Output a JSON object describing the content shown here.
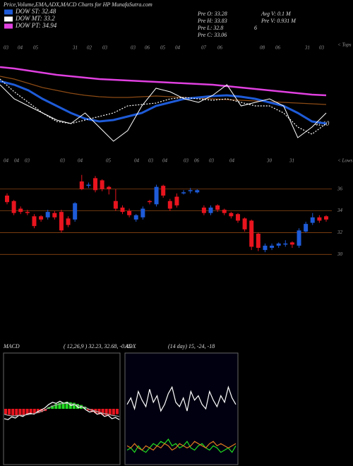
{
  "header": {
    "title": "Price,Volume,EMA,ADX,MACD Charts for HP MunafaSutra.com",
    "legend": [
      {
        "text": "DOW ST: 32.48",
        "color": "#1e5bd8"
      },
      {
        "text": "DOW MT: 33.2",
        "color": "#ffffff"
      },
      {
        "text": "DOW PT: 34.94",
        "color": "#e040e0"
      }
    ],
    "info": [
      "Pre O: 33.28",
      "Avg V: 0.1 M",
      "Pre H: 33.83",
      "Pre V: 0.931 M",
      "Pre L: 32.8",
      "6",
      "Pre C: 33.06"
    ],
    "tops_label": "< Tops",
    "lows_label": "< Lows",
    "top_dates": [
      "03",
      "04",
      "05",
      "31",
      "02",
      "03",
      "03",
      "06",
      "05",
      "04",
      "07",
      "06",
      "08",
      "06",
      "31",
      "03"
    ],
    "low_dates": [
      "04",
      "04",
      "03",
      "03",
      "04",
      "05",
      "04",
      "03",
      "04",
      "03",
      "06",
      "03",
      "04",
      "30",
      "31"
    ]
  },
  "chart_data": [
    {
      "type": "line",
      "annotation": "41.10",
      "ylim": [
        0,
        150
      ],
      "series": [
        {
          "name": "DOW PT",
          "color": "#e040e0",
          "width": 2.5,
          "values": [
            120,
            118,
            115,
            112,
            109,
            107,
            105,
            103,
            102,
            101,
            100,
            99,
            98,
            97,
            96,
            95,
            93,
            91,
            89,
            87,
            85,
            83,
            81,
            80
          ]
        },
        {
          "name": "DOW LT",
          "color": "#8b4a14",
          "width": 1.2,
          "values": [
            107,
            103,
            97,
            91,
            87,
            83,
            80,
            78,
            77,
            77,
            78,
            79,
            78,
            77,
            76,
            75,
            74,
            73,
            72,
            71,
            70,
            69,
            68,
            67
          ]
        },
        {
          "name": "DOW ST",
          "color": "#1e5bd8",
          "width": 3,
          "values": [
            100,
            95,
            87,
            75,
            65,
            55,
            47,
            43,
            45,
            50,
            55,
            65,
            70,
            75,
            77,
            79,
            80,
            78,
            75,
            70,
            65,
            55,
            43,
            40
          ]
        },
        {
          "name": "DOW MT",
          "color": "#ffffff",
          "width": 1.2,
          "dash": true,
          "values": [
            103,
            85,
            70,
            55,
            43,
            40,
            45,
            50,
            55,
            65,
            67,
            69,
            75,
            77,
            75,
            73,
            75,
            70,
            65,
            65,
            55,
            35,
            25,
            40
          ]
        },
        {
          "name": "Price",
          "color": "#ffffff",
          "width": 1,
          "values": [
            95,
            75,
            65,
            55,
            45,
            40,
            55,
            35,
            15,
            30,
            65,
            90,
            85,
            75,
            70,
            80,
            95,
            65,
            70,
            75,
            65,
            20,
            35,
            55
          ]
        }
      ]
    },
    {
      "type": "candlestick",
      "ylim": [
        29.5,
        37.8
      ],
      "yticks": [
        36,
        34,
        32,
        30
      ],
      "up_color": "#1e5bd8",
      "down_color": "#e8141e",
      "open": [
        35.4,
        34.9,
        34.2,
        33.9,
        33.5,
        33.5,
        33.4,
        33.8,
        33.9,
        33.3,
        33.2,
        36.7,
        36.3,
        37.0,
        36.8,
        36.2,
        34.9,
        34.3,
        34.0,
        33.2,
        33.4,
        34.9,
        34.6,
        36.3,
        34.9,
        35.3,
        35.6,
        35.8,
        35.7,
        34.3,
        33.8,
        34.5,
        34.1,
        33.8,
        33.7,
        33.3,
        33.1,
        31.9,
        30.4,
        30.6,
        30.8,
        30.9,
        31.1,
        30.8,
        32.1,
        32.9,
        33.4,
        33.5
      ],
      "close": [
        34.8,
        33.8,
        33.9,
        33.8,
        32.6,
        33.2,
        33.9,
        33.4,
        32.2,
        32.7,
        34.7,
        36.0,
        36.4,
        35.9,
        36.0,
        36.0,
        34.2,
        33.9,
        33.6,
        33.6,
        34.2,
        34.8,
        36.2,
        35.4,
        34.2,
        34.5,
        35.7,
        35.9,
        35.9,
        33.8,
        34.3,
        34.1,
        33.8,
        33.5,
        33.1,
        32.3,
        30.7,
        30.6,
        30.8,
        30.8,
        31.0,
        31.0,
        30.9,
        32.2,
        32.8,
        33.4,
        33.1,
        33.2
      ],
      "high": [
        35.6,
        35.0,
        34.4,
        34.1,
        33.7,
        33.6,
        34.1,
        34.0,
        34.1,
        33.5,
        34.8,
        37.3,
        36.6,
        37.2,
        36.9,
        36.3,
        36.0,
        34.5,
        34.2,
        33.7,
        34.4,
        35.0,
        36.4,
        36.4,
        35.1,
        35.6,
        35.9,
        36.1,
        36.0,
        34.5,
        34.5,
        34.6,
        34.2,
        33.9,
        33.8,
        33.4,
        33.2,
        32.0,
        31.0,
        31.0,
        31.1,
        31.3,
        31.2,
        32.4,
        33.0,
        33.8,
        33.6,
        33.6
      ],
      "low": [
        34.6,
        33.6,
        33.7,
        33.6,
        32.4,
        33.0,
        33.2,
        33.2,
        32.0,
        32.5,
        33.0,
        35.9,
        36.1,
        35.7,
        35.8,
        35.5,
        34.0,
        33.7,
        33.4,
        33.0,
        33.2,
        34.6,
        34.4,
        35.2,
        34.0,
        34.3,
        35.5,
        35.6,
        35.6,
        33.6,
        33.6,
        33.9,
        33.6,
        33.3,
        32.9,
        32.1,
        30.4,
        30.3,
        30.2,
        30.4,
        30.6,
        30.7,
        30.6,
        30.6,
        32.0,
        32.7,
        32.9,
        33.0
      ]
    },
    {
      "type": "macd",
      "title": "MACD",
      "subtitle": "( 12,26,9 ) 32.23, 32.68, -0.45",
      "ylim": [
        -1,
        1
      ],
      "values": [
        -0.1,
        -0.11,
        -0.12,
        -0.12,
        -0.13,
        -0.12,
        -0.11,
        -0.1,
        -0.09,
        -0.08,
        -0.06,
        -0.04,
        0.03,
        0.06,
        0.09,
        0.11,
        0.12,
        0.13,
        0.12,
        0.11,
        0.09,
        0.07,
        0.04,
        -0.03,
        -0.06,
        -0.08,
        -0.1,
        -0.11,
        -0.12,
        -0.12,
        -0.11,
        -0.1
      ],
      "series": [
        {
          "name": "MACD",
          "color": "#ffffff",
          "values": [
            -0.18,
            -0.2,
            -0.15,
            -0.17,
            -0.12,
            -0.14,
            -0.1,
            -0.08,
            -0.1,
            -0.05,
            -0.02,
            0.02,
            0.08,
            0.12,
            0.1,
            0.14,
            0.1,
            0.12,
            0.06,
            0.08,
            0.02,
            0.04,
            -0.02,
            -0.06,
            -0.04,
            -0.1,
            -0.08,
            -0.14,
            -0.12,
            -0.18,
            -0.16,
            -0.2
          ]
        },
        {
          "name": "Signal",
          "color": "#aaaaaa",
          "values": [
            -0.1,
            -0.12,
            -0.13,
            -0.13,
            -0.12,
            -0.12,
            -0.11,
            -0.1,
            -0.09,
            -0.07,
            -0.05,
            -0.02,
            0.02,
            0.05,
            0.07,
            0.09,
            0.1,
            0.1,
            0.09,
            0.08,
            0.06,
            0.04,
            0.02,
            -0.01,
            -0.03,
            -0.05,
            -0.07,
            -0.09,
            -0.1,
            -0.12,
            -0.13,
            -0.14
          ]
        }
      ]
    },
    {
      "type": "adx",
      "title": "ADX",
      "subtitle": "(14 day) 15, -24, -18",
      "ylim": [
        0,
        50
      ],
      "series": [
        {
          "name": "ADX",
          "color": "#ffffff",
          "values": [
            27,
            30,
            25,
            33,
            29,
            26,
            34,
            28,
            31,
            24,
            27,
            32,
            35,
            28,
            26,
            30,
            24,
            33,
            29,
            31,
            27,
            25,
            33,
            29,
            26,
            31,
            28,
            35,
            30,
            27
          ]
        },
        {
          "name": "+DI",
          "color": "#22dd22",
          "values": [
            6,
            7,
            5,
            8,
            6,
            5,
            7,
            9,
            8,
            10,
            9,
            11,
            8,
            9,
            7,
            8,
            10,
            7,
            6,
            8,
            9,
            7,
            6,
            8,
            7,
            5,
            6,
            7,
            5,
            8
          ]
        },
        {
          "name": "-DI",
          "color": "#e07a20",
          "values": [
            8,
            7,
            9,
            7,
            6,
            8,
            7,
            6,
            8,
            7,
            9,
            8,
            6,
            7,
            9,
            8,
            7,
            8,
            10,
            9,
            8,
            7,
            9,
            10,
            8,
            9,
            8,
            7,
            8,
            9
          ]
        }
      ]
    }
  ]
}
